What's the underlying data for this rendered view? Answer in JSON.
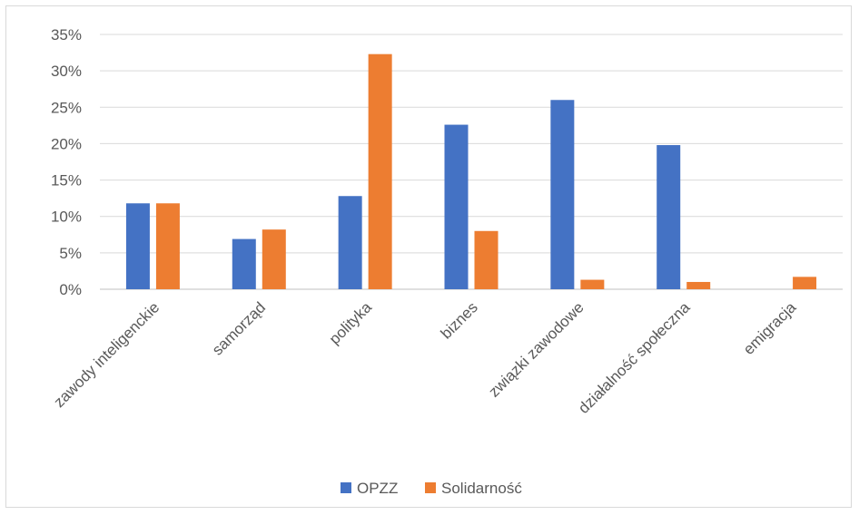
{
  "chart_data": {
    "type": "bar",
    "categories": [
      "zawody inteligenckie",
      "samorząd",
      "polityka",
      "biznes",
      "związki zawodowe",
      "działalność społeczna",
      "emigracja"
    ],
    "series": [
      {
        "name": "OPZZ",
        "color": "#4472c4",
        "values": [
          11.8,
          6.9,
          12.8,
          22.6,
          26.0,
          19.8,
          0
        ]
      },
      {
        "name": "Solidarność",
        "color": "#ed7d31",
        "values": [
          11.8,
          8.2,
          32.3,
          8.0,
          1.3,
          1.0,
          1.7
        ]
      }
    ],
    "yticks": [
      "0%",
      "5%",
      "10%",
      "15%",
      "20%",
      "25%",
      "30%",
      "35%"
    ],
    "ylim": [
      0,
      35
    ],
    "grid": true,
    "legend_position": "bottom"
  }
}
